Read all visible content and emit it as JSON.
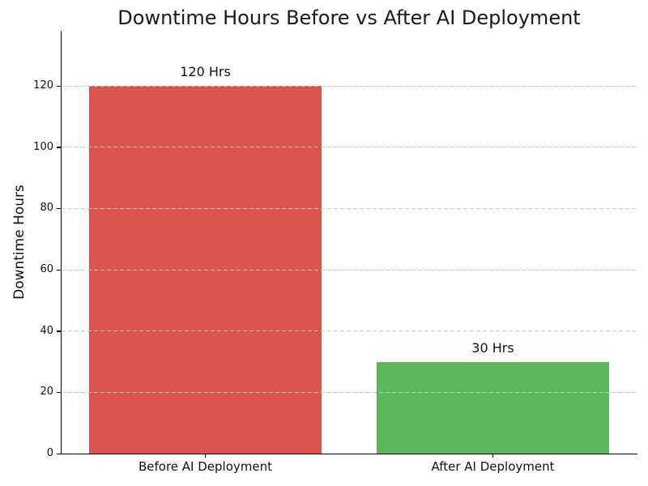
{
  "chart_data": {
    "type": "bar",
    "title": "Downtime Hours Before vs After AI Deployment",
    "ylabel": "Downtime Hours",
    "xlabel": "",
    "categories": [
      "Before AI Deployment",
      "After AI Deployment"
    ],
    "values": [
      120,
      30
    ],
    "value_labels": [
      "120 Hrs",
      "30 Hrs"
    ],
    "bar_colors": [
      "#d9534f",
      "#5cb85c"
    ],
    "ylim": [
      0,
      138
    ],
    "yticks": [
      0,
      20,
      40,
      60,
      80,
      100,
      120
    ],
    "grid": "horizontal-dashed",
    "grid_color": "#c9c9c9",
    "axis_color": "#000000",
    "text_color": "#1a1a1a",
    "background": "#ffffff",
    "legend": "none"
  }
}
